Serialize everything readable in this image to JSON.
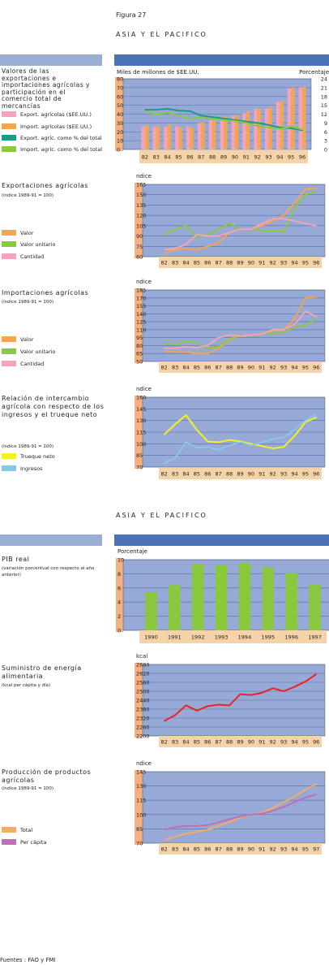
{
  "figure_label": "Figura 27",
  "region_heading_1": "ASIA Y EL PACIFICO",
  "region_heading_2": "ASIA Y EL PACIFICO",
  "source": "Fuentes : FAO y FMI",
  "chart_data": [
    {
      "id": "c1",
      "type": "bar",
      "title": "Valores de las exportaciones e importaciones agrícolas y participación en el comercio total de mercancías",
      "ylabel": "Miles de millones de $EE.UU.",
      "y2label": "Porcentaje",
      "categories": [
        "82",
        "83",
        "84",
        "85",
        "86",
        "87",
        "88",
        "89",
        "90",
        "91",
        "92",
        "93",
        "94",
        "95",
        "96"
      ],
      "ylim": [
        0,
        80
      ],
      "yticks": [
        0,
        10,
        20,
        30,
        40,
        50,
        60,
        70,
        80
      ],
      "y2lim": [
        0,
        24
      ],
      "y2ticks": [
        0,
        3,
        6,
        9,
        12,
        15,
        18,
        21,
        24
      ],
      "series": [
        {
          "name": "Export. agrícolas ($EE.UU.)",
          "kind": "bar",
          "color": "#f4a3b8",
          "values": [
            26,
            26,
            26,
            26,
            26,
            30,
            33,
            36,
            38,
            41,
            46,
            46,
            54,
            69,
            70
          ]
        },
        {
          "name": "Import. agrícolas ($EE.UU.)",
          "kind": "bar",
          "color": "#f4a54e",
          "values": [
            27,
            26,
            28,
            25,
            25,
            31,
            33,
            37,
            39,
            43,
            46,
            47,
            55,
            70,
            71
          ]
        },
        {
          "name": "Export. agríc. como % del total",
          "kind": "line",
          "axis": "right",
          "color": "#1a9a88",
          "values": [
            13.5,
            13.5,
            13.8,
            13.2,
            13,
            11.5,
            11,
            10.5,
            10,
            9.5,
            9,
            8.3,
            7.5,
            7.2,
            6.5
          ]
        },
        {
          "name": "Import. agríc. como % del total",
          "kind": "line",
          "axis": "right",
          "color": "#8ac83e",
          "values": [
            13,
            12,
            12.5,
            11.5,
            10.5,
            10.8,
            10.5,
            10,
            9.7,
            9,
            8,
            7.5,
            7,
            7.8,
            6.8
          ]
        }
      ]
    },
    {
      "id": "c2",
      "type": "line",
      "title": "Exportaciones agrícolas",
      "subtitle": "(índice 1989-91 = 100)",
      "ylabel": "Índice",
      "categories": [
        "82",
        "83",
        "84",
        "85",
        "86",
        "87",
        "88",
        "89",
        "90",
        "91",
        "92",
        "93",
        "94",
        "95",
        "96"
      ],
      "ylim": [
        60,
        165
      ],
      "yticks": [
        60,
        75,
        90,
        105,
        120,
        135,
        150,
        165
      ],
      "series": [
        {
          "name": "Valor",
          "color": "#f4a54e",
          "values": [
            65,
            70,
            72,
            70,
            75,
            80,
            95,
            100,
            100,
            105,
            112,
            120,
            138,
            158,
            160
          ]
        },
        {
          "name": "Valor unitario",
          "color": "#8ac83e",
          "values": [
            92,
            100,
            105,
            88,
            92,
            100,
            108,
            100,
            100,
            98,
            97,
            96,
            130,
            150,
            155
          ]
        },
        {
          "name": "Cantidad",
          "color": "#f4a3b8",
          "values": [
            70,
            72,
            78,
            92,
            90,
            90,
            95,
            100,
            100,
            108,
            115,
            115,
            112,
            108,
            105
          ]
        }
      ]
    },
    {
      "id": "c3",
      "type": "line",
      "title": "Importaciones agrícolas",
      "subtitle": "(índice 1989-91 = 100)",
      "ylabel": "Índice",
      "categories": [
        "82",
        "83",
        "84",
        "85",
        "86",
        "87",
        "88",
        "89",
        "90",
        "91",
        "92",
        "93",
        "94",
        "95",
        "96"
      ],
      "ylim": [
        50,
        185
      ],
      "yticks": [
        50,
        65,
        80,
        95,
        110,
        125,
        140,
        155,
        170,
        185
      ],
      "series": [
        {
          "name": "Valor",
          "color": "#f4a54e",
          "values": [
            70,
            68,
            68,
            65,
            65,
            75,
            90,
            100,
            100,
            102,
            108,
            110,
            130,
            170,
            172
          ]
        },
        {
          "name": "Valor unitario",
          "color": "#8ac83e",
          "values": [
            85,
            82,
            88,
            84,
            75,
            78,
            92,
            100,
            98,
            102,
            104,
            105,
            115,
            118,
            130
          ]
        },
        {
          "name": "Cantidad",
          "color": "#f4a3b8",
          "values": [
            75,
            75,
            78,
            76,
            80,
            95,
            100,
            98,
            100,
            102,
            110,
            110,
            120,
            145,
            135
          ]
        }
      ]
    },
    {
      "id": "c4",
      "type": "line",
      "title": "Relación de intercambio agrícola con respecto de los ingresos y el trueque neto",
      "subtitle": "(índice 1989-91 = 100)",
      "ylabel": "Índice",
      "categories": [
        "82",
        "83",
        "84",
        "85",
        "86",
        "87",
        "88",
        "89",
        "90",
        "91",
        "92",
        "93",
        "94",
        "95",
        "96"
      ],
      "ylim": [
        70,
        160
      ],
      "yticks": [
        70,
        85,
        100,
        115,
        130,
        145,
        160
      ],
      "series": [
        {
          "name": "Trueque neto",
          "color": "#f5f219",
          "values": [
            112,
            125,
            137,
            118,
            103,
            102,
            105,
            103,
            100,
            97,
            94,
            96,
            110,
            128,
            134
          ]
        },
        {
          "name": "Ingresos",
          "color": "#88c8e4",
          "values": [
            75,
            82,
            102,
            95,
            96,
            92,
            98,
            102,
            98,
            102,
            106,
            108,
            118,
            130,
            138
          ]
        }
      ]
    },
    {
      "id": "c5",
      "type": "bar",
      "title": "PIB real",
      "subtitle": "(variación porcentual con respecto al año anterior)",
      "ylabel": "Porcentaje",
      "categories": [
        "1990",
        "1991",
        "1992",
        "1993",
        "1994",
        "1995",
        "1996",
        "1997"
      ],
      "ylim": [
        0,
        10
      ],
      "yticks": [
        0,
        2,
        4,
        6,
        8,
        10
      ],
      "series": [
        {
          "name": "PIB real",
          "color": "#8ac83e",
          "values": [
            5.4,
            6.4,
            9.4,
            9.2,
            9.5,
            8.9,
            8.1,
            6.5
          ]
        }
      ]
    },
    {
      "id": "c6",
      "type": "line",
      "title": "Suministro de energía alimentaria",
      "subtitle": "(kcal per cápita y día)",
      "ylabel": "kcal",
      "categories": [
        "82",
        "83",
        "84",
        "85",
        "86",
        "87",
        "88",
        "89",
        "90",
        "91",
        "92",
        "93",
        "94",
        "95",
        "96"
      ],
      "ylim": [
        2200,
        2680
      ],
      "yticks": [
        2200,
        2260,
        2320,
        2380,
        2440,
        2500,
        2560,
        2620,
        2680
      ],
      "series": [
        {
          "name": "Suministro de energía alimentaria",
          "color": "#ee2222",
          "values": [
            2300,
            2340,
            2405,
            2370,
            2400,
            2410,
            2405,
            2480,
            2475,
            2490,
            2520,
            2500,
            2530,
            2565,
            2615
          ]
        }
      ]
    },
    {
      "id": "c7",
      "type": "line",
      "title": "Producción de productos agrícolas",
      "subtitle": "(índice 1989-91 = 100)",
      "ylabel": "Índice",
      "categories": [
        "82",
        "83",
        "84",
        "85",
        "86",
        "87",
        "88",
        "89",
        "90",
        "91",
        "92",
        "93",
        "94",
        "95",
        "97"
      ],
      "ylim": [
        70,
        145
      ],
      "yticks": [
        70,
        85,
        100,
        115,
        130,
        145
      ],
      "series": [
        {
          "name": "Total",
          "color": "#f4ad60",
          "values": [
            73,
            77,
            80,
            82,
            84,
            88,
            92,
            97,
            100,
            102,
            107,
            113,
            119,
            126,
            132
          ]
        },
        {
          "name": "Per cápita",
          "color": "#c070b8",
          "values": [
            84,
            87,
            88,
            88,
            89,
            92,
            95,
            98,
            100,
            101,
            104,
            108,
            113,
            118,
            121
          ]
        }
      ]
    }
  ],
  "legend_c1": [
    "Export. agrícolas ($EE.UU.)",
    "Import. agrícolas ($EE.UU.)",
    "Export. agríc. como % del total",
    "Import. agríc. como % del total"
  ],
  "legend_c2": [
    "Valor",
    "Valor unitario",
    "Cantidad"
  ],
  "legend_c3": [
    "Valor",
    "Valor unitario",
    "Cantidad"
  ],
  "legend_c4": [
    "Trueque neto",
    "Ingresos"
  ],
  "legend_c7": [
    "Total",
    "Per cápita"
  ]
}
